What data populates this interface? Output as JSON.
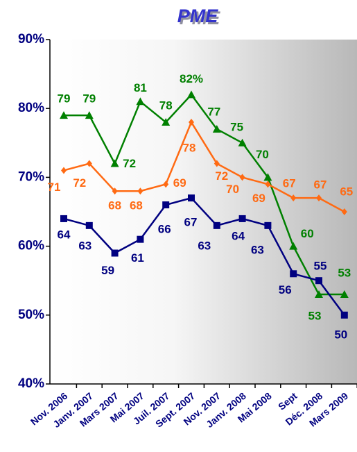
{
  "chart_data": {
    "type": "line",
    "title": "PME",
    "categories": [
      "Nov. 2006",
      "Janv. 2007",
      "Mars 2007",
      "Mai 2007",
      "Juil. 2007",
      "Sept. 2007",
      "Nov. 2007",
      "Janv. 2008",
      "Mai 2008",
      "Sept",
      "Déc. 2008",
      "Mars 2009"
    ],
    "series": [
      {
        "color": "#008000",
        "marker": "triangle",
        "values": [
          79,
          79,
          72,
          81,
          78,
          82,
          77,
          75,
          70,
          60,
          53,
          53
        ],
        "value_labels": [
          "79",
          "79",
          "72",
          "81",
          "78",
          "82%",
          "77",
          "75",
          "70",
          "60",
          "53",
          "53"
        ]
      },
      {
        "color": "#ff6a13",
        "marker": "diamond",
        "values": [
          71,
          72,
          68,
          68,
          69,
          78,
          72,
          70,
          69,
          67,
          67,
          65
        ]
      },
      {
        "color": "#000080",
        "marker": "square",
        "values": [
          64,
          63,
          59,
          61,
          66,
          67,
          63,
          64,
          63,
          56,
          55,
          50
        ]
      }
    ],
    "ylim": [
      40,
      90
    ],
    "yticks": [
      {
        "value": 40,
        "label": "40%"
      },
      {
        "value": 50,
        "label": "50%"
      },
      {
        "value": 60,
        "label": "60%"
      },
      {
        "value": 70,
        "label": "70%"
      },
      {
        "value": 80,
        "label": "80%"
      },
      {
        "value": 90,
        "label": "90%"
      }
    ]
  }
}
